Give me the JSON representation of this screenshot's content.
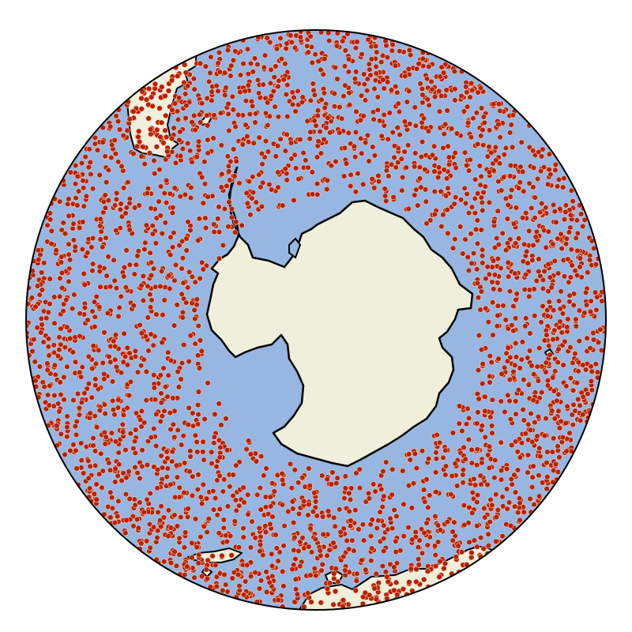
{
  "map": {
    "projection": "orthographic",
    "view": "south polar",
    "colors": {
      "background": "#ffffff",
      "ocean": "#97b6e1",
      "land": "#efefdb",
      "coastline": "#000000",
      "globe_outline": "#000000",
      "marker_fill": "#b82200",
      "marker_edge": "#f2d2c4"
    },
    "landmasses": [
      "antarctica",
      "south-america",
      "africa",
      "australia",
      "new-zealand"
    ],
    "marker_shape": "circle"
  }
}
